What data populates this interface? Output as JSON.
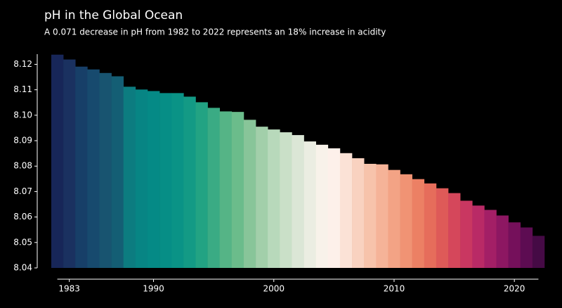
{
  "chart_data": {
    "type": "bar",
    "title": "pH in the Global Ocean",
    "subtitle": "A 0.071 decrease in pH from 1982 to 2022 represents an 18% increase in acidity",
    "x": [
      1982,
      1983,
      1984,
      1985,
      1986,
      1987,
      1988,
      1989,
      1990,
      1991,
      1992,
      1993,
      1994,
      1995,
      1996,
      1997,
      1998,
      1999,
      2000,
      2001,
      2002,
      2003,
      2004,
      2005,
      2006,
      2007,
      2008,
      2009,
      2010,
      2011,
      2012,
      2013,
      2014,
      2015,
      2016,
      2017,
      2018,
      2019,
      2020,
      2021,
      2022
    ],
    "values": [
      8.1238,
      8.1219,
      8.1191,
      8.118,
      8.1166,
      8.1153,
      8.1112,
      8.1101,
      8.1095,
      8.1087,
      8.1087,
      8.1073,
      8.1051,
      8.1029,
      8.1015,
      8.1013,
      8.0982,
      8.0955,
      8.0944,
      8.0933,
      8.0922,
      8.0897,
      8.0884,
      8.087,
      8.0851,
      8.0831,
      8.0809,
      8.0807,
      8.0785,
      8.0768,
      8.0749,
      8.0732,
      8.0713,
      8.0694,
      8.0664,
      8.0645,
      8.0628,
      8.0606,
      8.0579,
      8.0559,
      8.0526
    ],
    "colors": [
      "#172658",
      "#1a3160",
      "#173f68",
      "#174a6e",
      "#185470",
      "#145e74",
      "#0c7c80",
      "#078584",
      "#058a86",
      "#068e86",
      "#0a9386",
      "#139a85",
      "#22a383",
      "#3aab84",
      "#55b486",
      "#6bbc8b",
      "#88c599",
      "#a2cfaa",
      "#b8d9bb",
      "#cae0c8",
      "#dbe6d6",
      "#ebede2",
      "#f8f2ea",
      "#fdf0ea",
      "#fbe2d6",
      "#f9d2c0",
      "#f7c3ab",
      "#f5b398",
      "#f3a385",
      "#f09374",
      "#ec8064",
      "#e66d5b",
      "#de5a58",
      "#d5475b",
      "#c93761",
      "#b92a66",
      "#a31f66",
      "#8d1762",
      "#75105b",
      "#5d0c52",
      "#450a45"
    ],
    "xlim": [
      1981.5,
      2022.5
    ],
    "xticks": [
      1983,
      1990,
      2000,
      2010,
      2020
    ],
    "ylim": [
      8.04,
      8.124
    ],
    "yticks": [
      {
        "value": 8.04,
        "label": "8.04"
      },
      {
        "value": 8.05,
        "label": "8.05"
      },
      {
        "value": 8.06,
        "label": "8.06"
      },
      {
        "value": 8.07,
        "label": "8.07"
      },
      {
        "value": 8.08,
        "label": "8.08"
      },
      {
        "value": 8.09,
        "label": "8.09"
      },
      {
        "value": 8.1,
        "label": "8.10"
      },
      {
        "value": 8.11,
        "label": "8.11"
      },
      {
        "value": 8.12,
        "label": "8.12"
      }
    ]
  }
}
